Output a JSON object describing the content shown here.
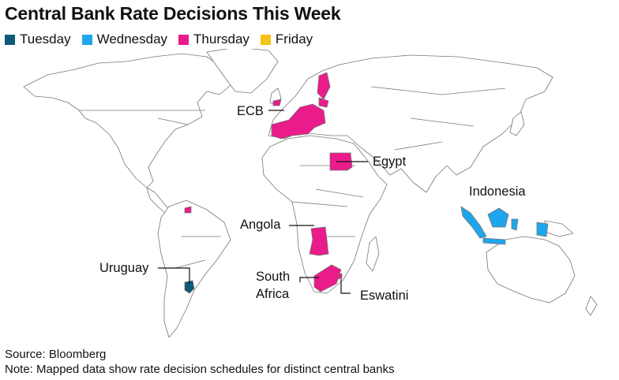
{
  "title": "Central Bank Rate Decisions This Week",
  "legend": [
    {
      "label": "Tuesday",
      "color": "#0d5b78"
    },
    {
      "label": "Wednesday",
      "color": "#1ea6ec"
    },
    {
      "label": "Thursday",
      "color": "#ea1b8a"
    },
    {
      "label": "Friday",
      "color": "#f5c218"
    }
  ],
  "map": {
    "labels": {
      "ecb": "ECB",
      "egypt": "Egypt",
      "indonesia": "Indonesia",
      "angola": "Angola",
      "uruguay": "Uruguay",
      "south_africa_1": "South",
      "south_africa_2": "Africa",
      "eswatini": "Eswatini"
    },
    "highlighted": [
      {
        "region": "ECB (Euro area)",
        "day": "Thursday"
      },
      {
        "region": "Egypt",
        "day": "Thursday"
      },
      {
        "region": "Angola",
        "day": "Thursday"
      },
      {
        "region": "South Africa",
        "day": "Thursday"
      },
      {
        "region": "Eswatini",
        "day": "Thursday"
      },
      {
        "region": "Uruguay",
        "day": "Tuesday"
      },
      {
        "region": "Indonesia",
        "day": "Wednesday"
      }
    ]
  },
  "footer": {
    "source": "Source: Bloomberg",
    "note": "Note: Mapped data show rate decision schedules for distinct central banks"
  }
}
